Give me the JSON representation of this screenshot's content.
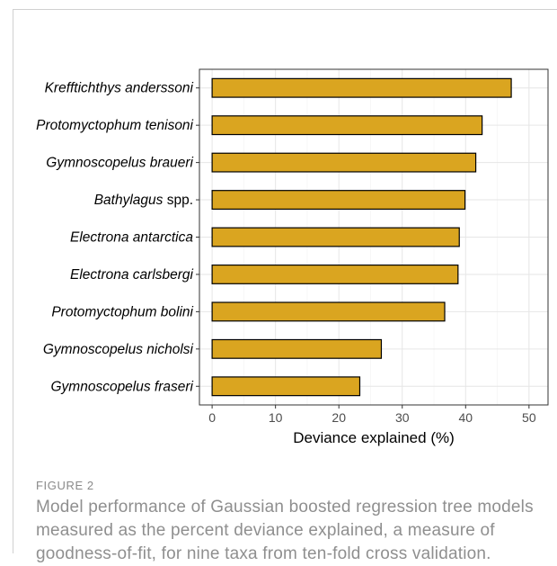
{
  "chart_data": {
    "type": "bar",
    "orientation": "horizontal",
    "categories": [
      "Krefftichthys anderssoni",
      "Protomyctophum tenisoni",
      "Gymnoscopelus braueri",
      "Bathylagus spp.",
      "Electrona antarctica",
      "Electrona carlsbergi",
      "Protomyctophum bolini",
      "Gymnoscopelus nicholsi",
      "Gymnoscopelus fraseri"
    ],
    "values": [
      47.2,
      42.6,
      41.6,
      39.9,
      39.0,
      38.8,
      36.7,
      26.7,
      23.3
    ],
    "xlabel": "Deviance explained (%)",
    "ylabel": "",
    "xlim": [
      -2,
      53
    ],
    "xticks": [
      0,
      10,
      20,
      30,
      40,
      50
    ],
    "grid": true,
    "bar_color": "#DAA520",
    "bar_edge_color": "#000000"
  },
  "caption": {
    "label": "FIGURE 2",
    "text": "Model performance of Gaussian boosted regression tree models measured as the percent deviance explained, a measure of goodness-of-fit, for nine taxa from ten-fold cross validation."
  }
}
